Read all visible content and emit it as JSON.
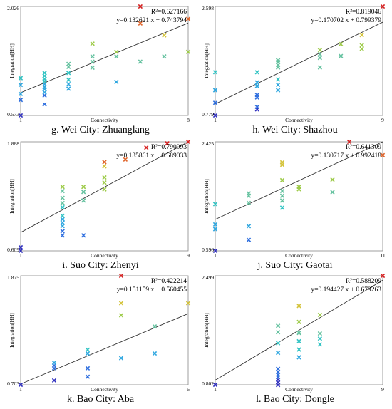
{
  "chart_data": [
    {
      "type": "scatter",
      "title": "g. Wei City: Zhuanglang",
      "xlabel": "Connectivity",
      "ylabel": "Integration[HH]",
      "xlim": [
        1,
        8
      ],
      "ylim": [
        0.573,
        2.026
      ],
      "x_ticks": [
        "1",
        "8"
      ],
      "y_ticks": [
        "0.573",
        "2.026"
      ],
      "r2_label": "R²=0.627166",
      "equation": "y=0.132621 x + 0.743794",
      "points": [
        {
          "x": 1,
          "y": 0.573
        },
        {
          "x": 1,
          "y": 0.78
        },
        {
          "x": 1,
          "y": 0.86
        },
        {
          "x": 1,
          "y": 0.98
        },
        {
          "x": 1,
          "y": 1.07
        },
        {
          "x": 2,
          "y": 0.72
        },
        {
          "x": 2,
          "y": 0.84
        },
        {
          "x": 2,
          "y": 0.88
        },
        {
          "x": 2,
          "y": 0.92
        },
        {
          "x": 2,
          "y": 0.95
        },
        {
          "x": 2,
          "y": 0.99
        },
        {
          "x": 2,
          "y": 1.03
        },
        {
          "x": 2,
          "y": 1.06
        },
        {
          "x": 2,
          "y": 1.1
        },
        {
          "x": 2,
          "y": 1.14
        },
        {
          "x": 3,
          "y": 0.93
        },
        {
          "x": 3,
          "y": 0.99
        },
        {
          "x": 3,
          "y": 1.05
        },
        {
          "x": 3,
          "y": 1.14
        },
        {
          "x": 3,
          "y": 1.22
        },
        {
          "x": 3,
          "y": 1.26
        },
        {
          "x": 4,
          "y": 1.21
        },
        {
          "x": 4,
          "y": 1.29
        },
        {
          "x": 4,
          "y": 1.36
        },
        {
          "x": 4,
          "y": 1.53
        },
        {
          "x": 5,
          "y": 1.02
        },
        {
          "x": 5,
          "y": 1.36
        },
        {
          "x": 5,
          "y": 1.42
        },
        {
          "x": 6,
          "y": 1.29
        },
        {
          "x": 6,
          "y": 1.8
        },
        {
          "x": 6,
          "y": 2.026
        },
        {
          "x": 7,
          "y": 1.36
        },
        {
          "x": 7,
          "y": 1.64
        },
        {
          "x": 8,
          "y": 1.42
        },
        {
          "x": 8,
          "y": 1.86
        }
      ]
    },
    {
      "type": "scatter",
      "title": "h. Wei City: Shazhou",
      "xlabel": "Connectivity",
      "ylabel": "Integration[HH]",
      "xlim": [
        1,
        9
      ],
      "ylim": [
        0.779,
        2.598
      ],
      "x_ticks": [
        "1",
        "9"
      ],
      "y_ticks": [
        "0.779",
        "2.598"
      ],
      "r2_label": "R²=0.819046",
      "equation": "y=0.170702 x + 0.799379",
      "points": [
        {
          "x": 1,
          "y": 0.779
        },
        {
          "x": 1,
          "y": 0.99
        },
        {
          "x": 1,
          "y": 1.2
        },
        {
          "x": 1,
          "y": 1.5
        },
        {
          "x": 3,
          "y": 0.88
        },
        {
          "x": 3,
          "y": 0.92
        },
        {
          "x": 3,
          "y": 1.08
        },
        {
          "x": 3,
          "y": 1.12
        },
        {
          "x": 3,
          "y": 1.27
        },
        {
          "x": 3,
          "y": 1.33
        },
        {
          "x": 3,
          "y": 1.5
        },
        {
          "x": 4,
          "y": 1.2
        },
        {
          "x": 4,
          "y": 1.29
        },
        {
          "x": 4,
          "y": 1.38
        },
        {
          "x": 4,
          "y": 1.58
        },
        {
          "x": 4,
          "y": 1.62
        },
        {
          "x": 4,
          "y": 1.67
        },
        {
          "x": 4,
          "y": 1.7
        },
        {
          "x": 6,
          "y": 1.58
        },
        {
          "x": 6,
          "y": 1.74
        },
        {
          "x": 6,
          "y": 1.8
        },
        {
          "x": 6,
          "y": 1.87
        },
        {
          "x": 7,
          "y": 1.77
        },
        {
          "x": 7,
          "y": 1.97
        },
        {
          "x": 8,
          "y": 1.89
        },
        {
          "x": 8,
          "y": 1.95
        },
        {
          "x": 8,
          "y": 2.12
        },
        {
          "x": 9,
          "y": 2.598
        }
      ]
    },
    {
      "type": "scatter",
      "title": "i. Suo City: Zhenyi",
      "xlabel": "Connectivity",
      "ylabel": "Integration[HH]",
      "xlim": [
        1,
        9
      ],
      "ylim": [
        0.609,
        1.888
      ],
      "x_ticks": [
        "1",
        "9"
      ],
      "y_ticks": [
        "0.609",
        "1.888"
      ],
      "r2_label": "R²=0.790993",
      "equation": "y=0.135861 x + 0.689033",
      "points": [
        {
          "x": 1,
          "y": 0.609
        },
        {
          "x": 1,
          "y": 0.65
        },
        {
          "x": 3,
          "y": 0.79
        },
        {
          "x": 3,
          "y": 0.84
        },
        {
          "x": 3,
          "y": 0.9
        },
        {
          "x": 3,
          "y": 0.94
        },
        {
          "x": 3,
          "y": 0.98
        },
        {
          "x": 3,
          "y": 1.02
        },
        {
          "x": 3,
          "y": 1.12
        },
        {
          "x": 3,
          "y": 1.17
        },
        {
          "x": 3,
          "y": 1.23
        },
        {
          "x": 3,
          "y": 1.31
        },
        {
          "x": 3,
          "y": 1.36
        },
        {
          "x": 4,
          "y": 0.79
        },
        {
          "x": 4,
          "y": 1.2
        },
        {
          "x": 4,
          "y": 1.3
        },
        {
          "x": 4,
          "y": 1.36
        },
        {
          "x": 5,
          "y": 1.33
        },
        {
          "x": 5,
          "y": 1.41
        },
        {
          "x": 5,
          "y": 1.47
        },
        {
          "x": 5,
          "y": 1.6
        },
        {
          "x": 5,
          "y": 1.65
        },
        {
          "x": 6,
          "y": 1.68
        },
        {
          "x": 7,
          "y": 1.82
        },
        {
          "x": 8,
          "y": 1.87
        },
        {
          "x": 9,
          "y": 1.888
        }
      ]
    },
    {
      "type": "scatter",
      "title": "j. Suo City: Gaotai",
      "xlabel": "Connectivity",
      "ylabel": "Integration[HH]",
      "xlim": [
        1,
        11
      ],
      "ylim": [
        0.596,
        2.425
      ],
      "x_ticks": [
        "1",
        "11"
      ],
      "y_ticks": [
        "0.596",
        "2.425"
      ],
      "r2_label": "R²=0.641309",
      "equation": "y=0.130717 x + 0.992418",
      "points": [
        {
          "x": 1,
          "y": 0.596
        },
        {
          "x": 1,
          "y": 0.96
        },
        {
          "x": 1,
          "y": 1.04
        },
        {
          "x": 1,
          "y": 1.38
        },
        {
          "x": 3,
          "y": 0.78
        },
        {
          "x": 3,
          "y": 1.01
        },
        {
          "x": 3,
          "y": 1.4
        },
        {
          "x": 3,
          "y": 1.52
        },
        {
          "x": 3,
          "y": 1.56
        },
        {
          "x": 5,
          "y": 1.32
        },
        {
          "x": 5,
          "y": 1.44
        },
        {
          "x": 5,
          "y": 1.52
        },
        {
          "x": 5,
          "y": 1.6
        },
        {
          "x": 5,
          "y": 1.78
        },
        {
          "x": 5,
          "y": 2.04
        },
        {
          "x": 5,
          "y": 2.08
        },
        {
          "x": 6,
          "y": 1.63
        },
        {
          "x": 6,
          "y": 1.67
        },
        {
          "x": 8,
          "y": 1.58
        },
        {
          "x": 8,
          "y": 1.79
        },
        {
          "x": 9,
          "y": 2.425
        },
        {
          "x": 11,
          "y": 2.2
        }
      ]
    },
    {
      "type": "scatter",
      "title": "k. Bao City: Aba",
      "xlabel": "Connectivity",
      "ylabel": "Integration[HH]",
      "xlim": [
        1,
        6
      ],
      "ylim": [
        0.703,
        1.875
      ],
      "x_ticks": [
        "1",
        "6"
      ],
      "y_ticks": [
        "0.703",
        "1.875"
      ],
      "r2_label": "R²=0.422214",
      "equation": "y=0.151159 x + 0.560455",
      "points": [
        {
          "x": 1,
          "y": 0.703
        },
        {
          "x": 2,
          "y": 0.75
        },
        {
          "x": 2,
          "y": 0.88
        },
        {
          "x": 2,
          "y": 0.91
        },
        {
          "x": 2,
          "y": 0.94
        },
        {
          "x": 3,
          "y": 0.79
        },
        {
          "x": 3,
          "y": 0.88
        },
        {
          "x": 3,
          "y": 1.04
        },
        {
          "x": 3,
          "y": 1.08
        },
        {
          "x": 4,
          "y": 0.99
        },
        {
          "x": 4,
          "y": 1.45
        },
        {
          "x": 4,
          "y": 1.58
        },
        {
          "x": 4,
          "y": 1.875
        },
        {
          "x": 5,
          "y": 1.04
        },
        {
          "x": 5,
          "y": 1.33
        },
        {
          "x": 6,
          "y": 1.58
        }
      ]
    },
    {
      "type": "scatter",
      "title": "l. Bao City: Dongle",
      "xlabel": "Connectivity",
      "ylabel": "Integration[HH]",
      "xlim": [
        1,
        9
      ],
      "ylim": [
        0.802,
        2.499
      ],
      "x_ticks": [
        "1",
        "9"
      ],
      "y_ticks": [
        "0.802",
        "2.499"
      ],
      "r2_label": "R²=0.588209",
      "equation": "y=0.194427 x + 0.679263",
      "points": [
        {
          "x": 1,
          "y": 0.802
        },
        {
          "x": 4,
          "y": 0.8
        },
        {
          "x": 4,
          "y": 0.84
        },
        {
          "x": 4,
          "y": 0.88
        },
        {
          "x": 4,
          "y": 0.92
        },
        {
          "x": 4,
          "y": 0.96
        },
        {
          "x": 4,
          "y": 1.0
        },
        {
          "x": 4,
          "y": 1.05
        },
        {
          "x": 4,
          "y": 1.3
        },
        {
          "x": 4,
          "y": 1.45
        },
        {
          "x": 4,
          "y": 1.62
        },
        {
          "x": 4,
          "y": 1.72
        },
        {
          "x": 5,
          "y": 1.23
        },
        {
          "x": 5,
          "y": 1.35
        },
        {
          "x": 5,
          "y": 1.48
        },
        {
          "x": 5,
          "y": 1.61
        },
        {
          "x": 5,
          "y": 1.78
        },
        {
          "x": 5,
          "y": 2.03
        },
        {
          "x": 6,
          "y": 1.43
        },
        {
          "x": 6,
          "y": 1.52
        },
        {
          "x": 6,
          "y": 1.6
        },
        {
          "x": 6,
          "y": 1.89
        },
        {
          "x": 9,
          "y": 2.499
        }
      ]
    }
  ],
  "colors": {
    "axis": "#888888",
    "regression_line": "#333333",
    "colormap": [
      "#2f2fbf",
      "#2f6fdf",
      "#2fa7e0",
      "#33c4c4",
      "#66c2a0",
      "#9ecb4a",
      "#d4c33a",
      "#e0642a",
      "#d62020"
    ]
  }
}
